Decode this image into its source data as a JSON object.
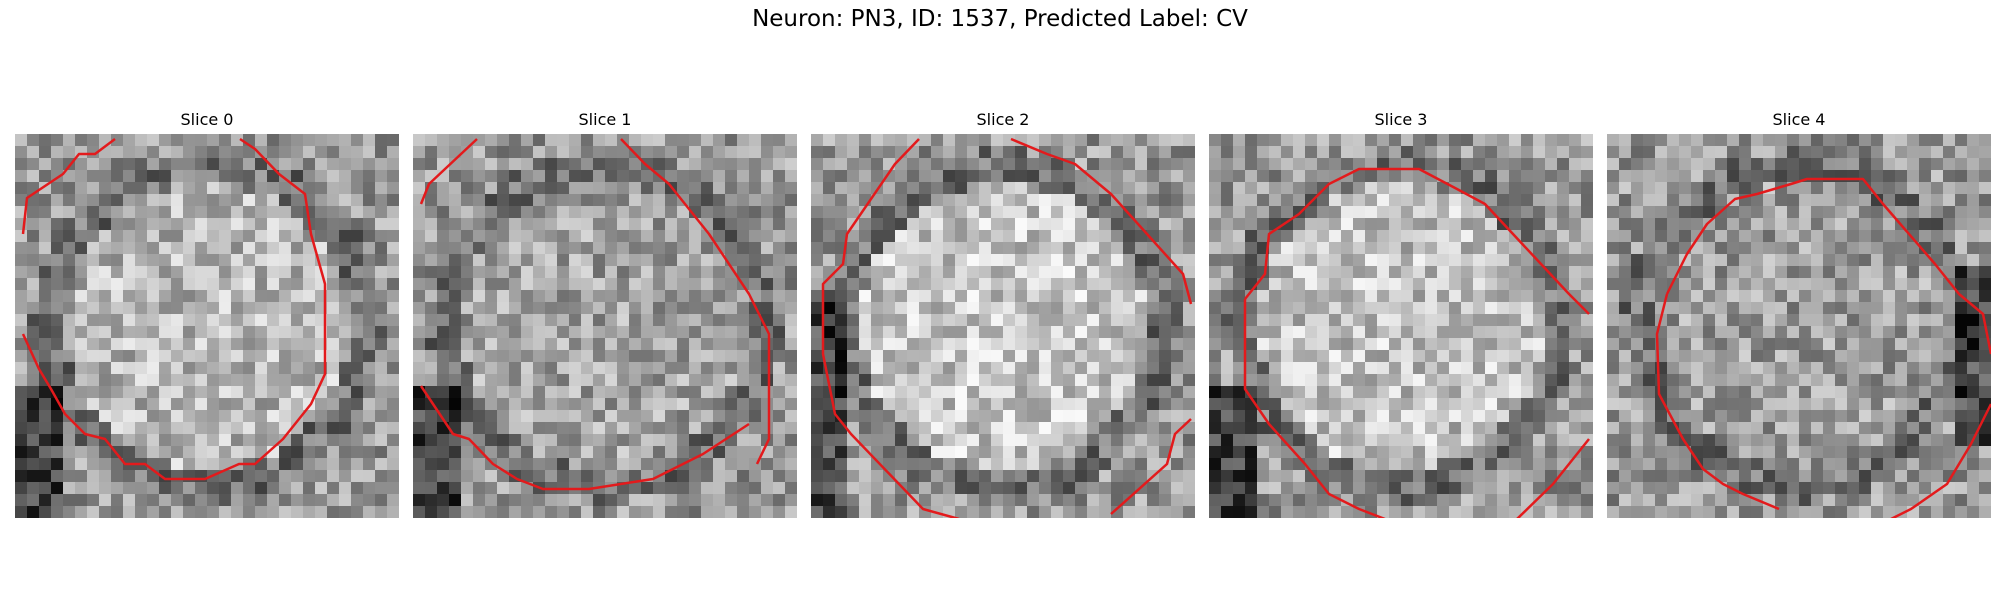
{
  "figure": {
    "title": "Neuron: PN3, ID: 1537, Predicted Label: CV"
  },
  "panels": [
    {
      "title": "Slice 0",
      "seed": 11,
      "bright": 0.72,
      "dark_corner": "bottom-left"
    },
    {
      "title": "Slice 1",
      "seed": 23,
      "bright": 0.64,
      "dark_corner": "bottom-left"
    },
    {
      "title": "Slice 2",
      "seed": 37,
      "bright": 0.78,
      "dark_corner": "left"
    },
    {
      "title": "Slice 3",
      "seed": 51,
      "bright": 0.76,
      "dark_corner": "bottom-left"
    },
    {
      "title": "Slice 4",
      "seed": 67,
      "bright": 0.62,
      "dark_corner": "right"
    }
  ],
  "colors": {
    "contour": "#e31a1c",
    "background": "#ffffff"
  }
}
